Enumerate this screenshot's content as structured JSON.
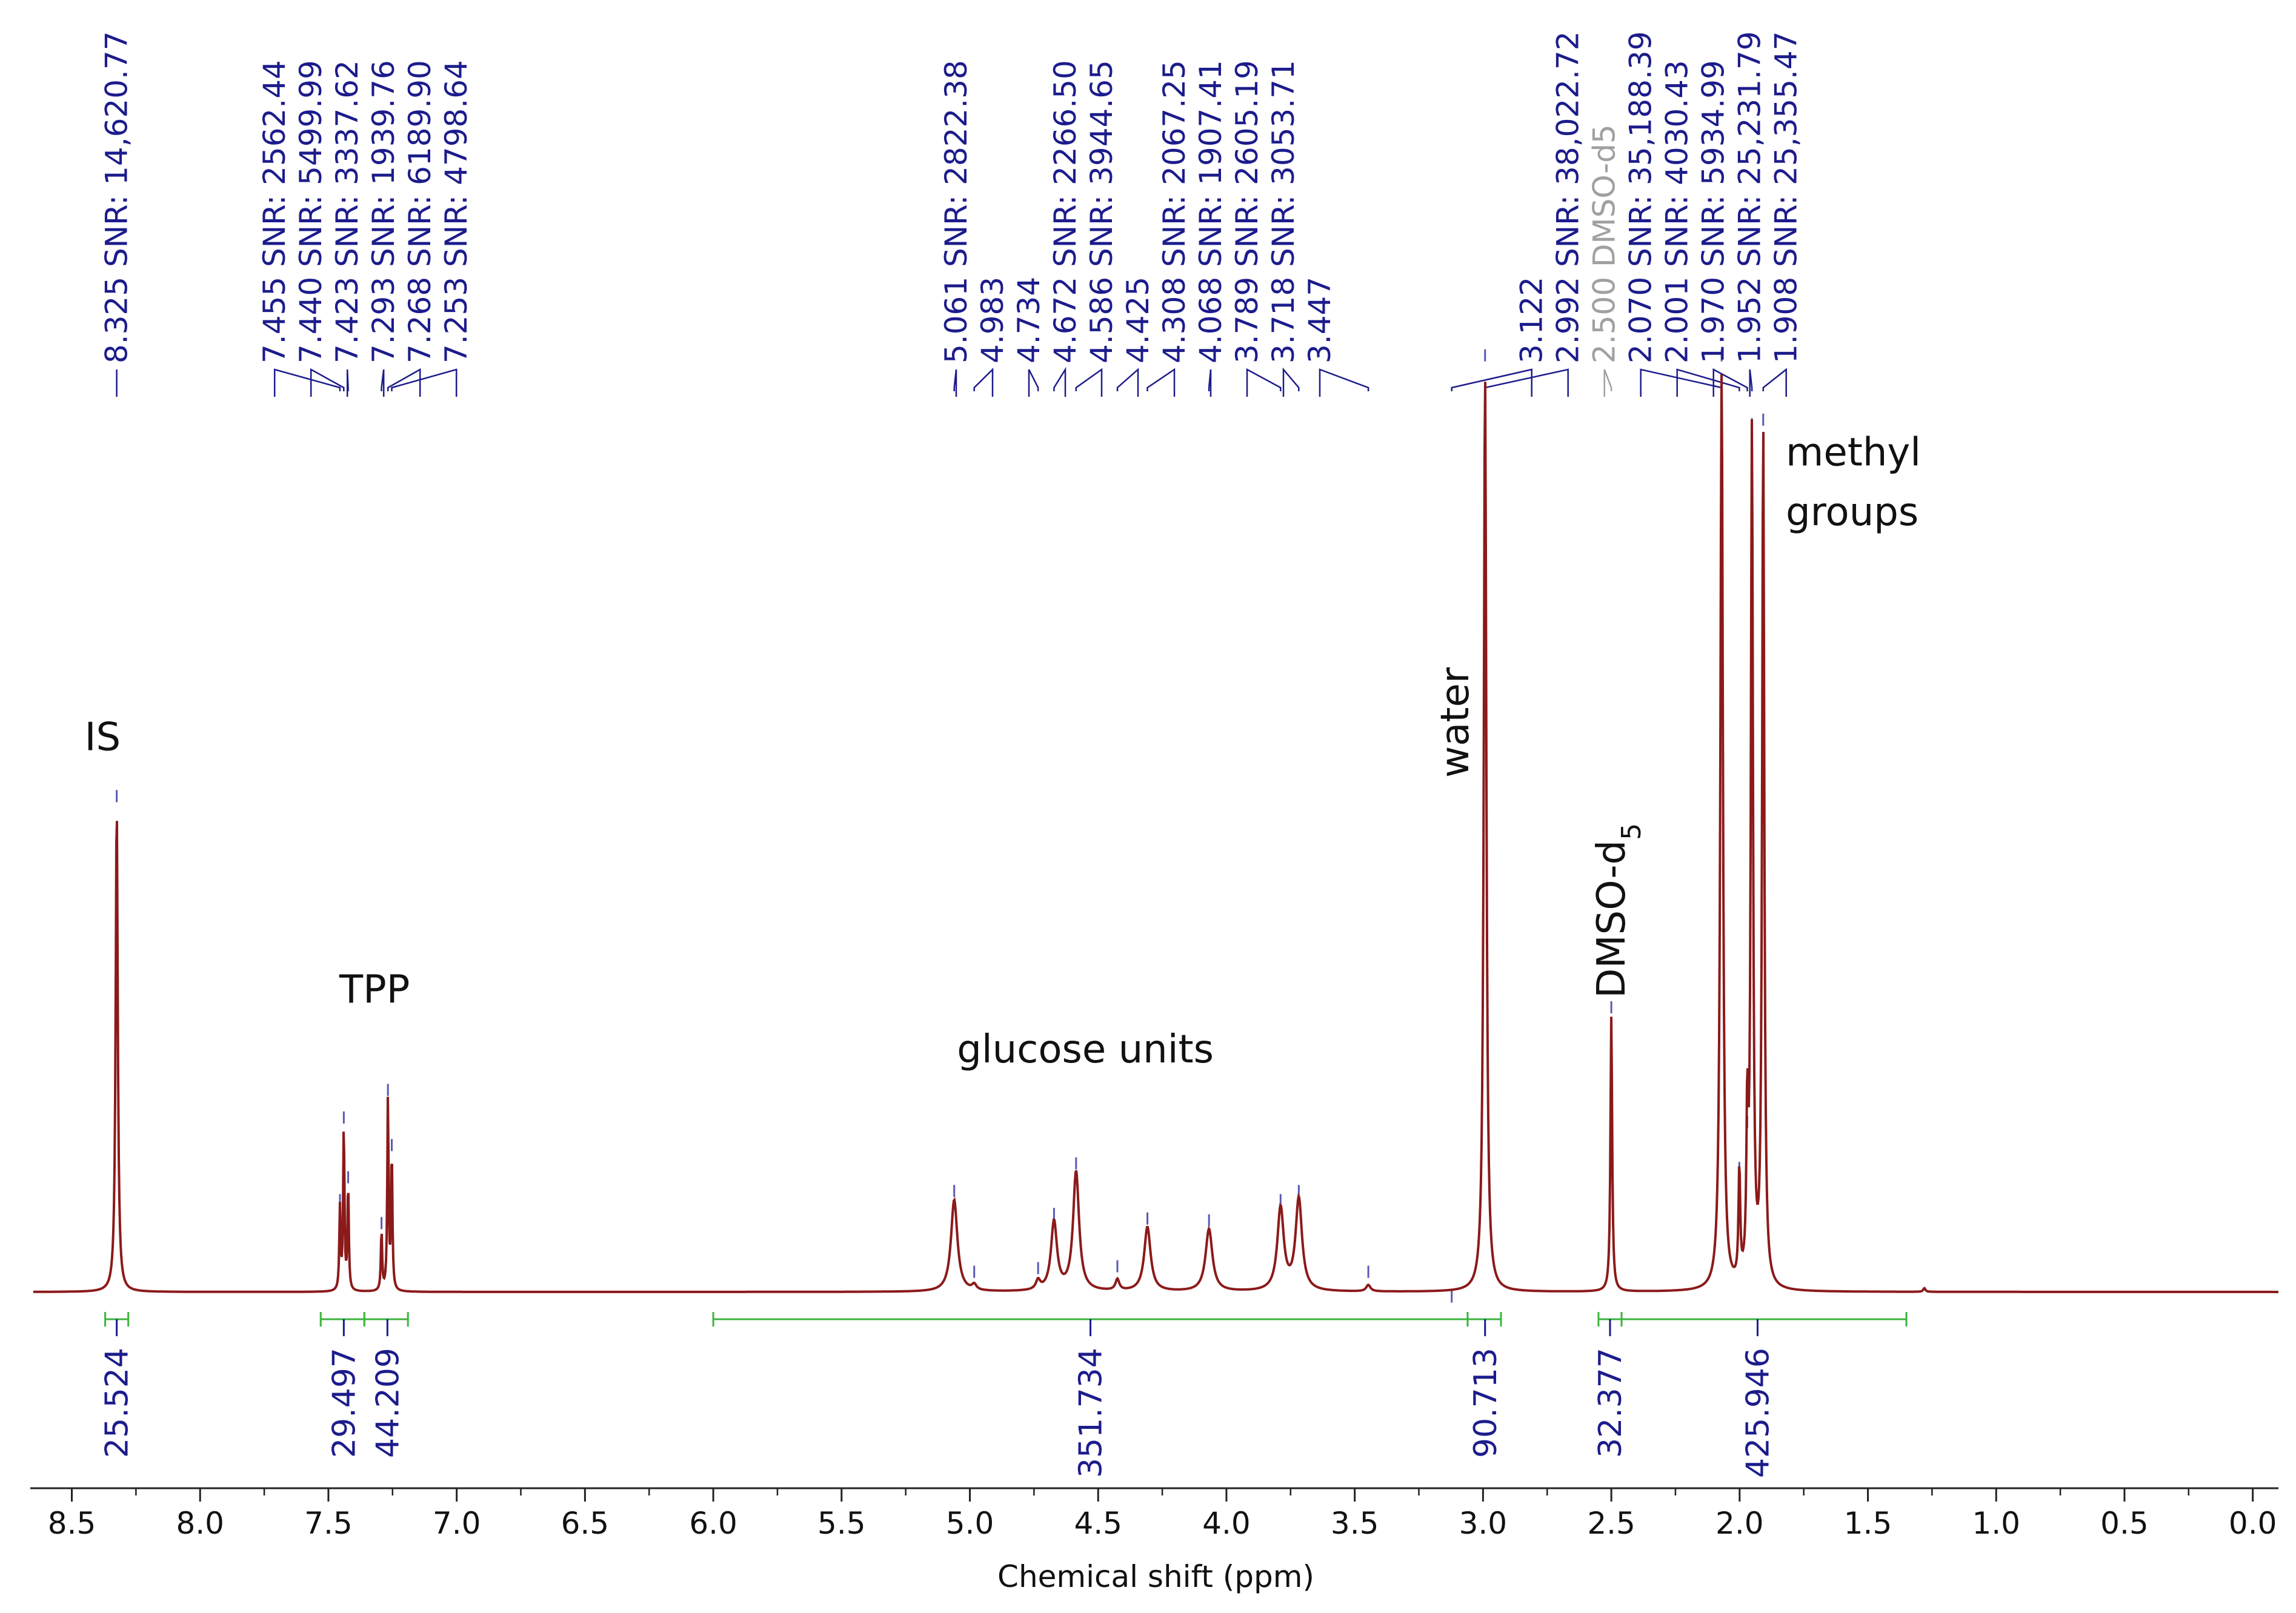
{
  "chart_data": {
    "type": "line",
    "xlabel": "Chemical shift (ppm)",
    "xlim": [
      8.65,
      -0.1
    ],
    "x_ticks": [
      "8.5",
      "8.0",
      "7.5",
      "7.0",
      "6.5",
      "6.0",
      "5.5",
      "5.0",
      "4.5",
      "4.0",
      "3.5",
      "3.0",
      "2.5",
      "2.0",
      "1.5",
      "1.0",
      "0.5",
      "0.0"
    ],
    "x_tick_values": [
      8.5,
      8.0,
      7.5,
      7.0,
      6.5,
      6.0,
      5.5,
      5.0,
      4.5,
      4.0,
      3.5,
      3.0,
      2.5,
      2.0,
      1.5,
      1.0,
      0.5,
      0.0
    ],
    "colors": {
      "spectrum": "#8b1a1a",
      "peak_label": "#1c1c8c",
      "solvent_label": "#a0a0a0",
      "integral": "#3cb43c",
      "integral_value": "#1c1c8c"
    },
    "spectrum_peaks": [
      {
        "ppm": 8.325,
        "height": 0.53,
        "width": 0.01
      },
      {
        "ppm": 7.455,
        "height": 0.09,
        "width": 0.006
      },
      {
        "ppm": 7.44,
        "height": 0.18,
        "width": 0.006
      },
      {
        "ppm": 7.423,
        "height": 0.115,
        "width": 0.006
      },
      {
        "ppm": 7.293,
        "height": 0.065,
        "width": 0.006
      },
      {
        "ppm": 7.268,
        "height": 0.21,
        "width": 0.006
      },
      {
        "ppm": 7.253,
        "height": 0.15,
        "width": 0.006
      },
      {
        "ppm": 5.061,
        "height": 0.1,
        "width": 0.03
      },
      {
        "ppm": 4.983,
        "height": 0.006,
        "width": 0.02
      },
      {
        "ppm": 4.734,
        "height": 0.01,
        "width": 0.02
      },
      {
        "ppm": 4.672,
        "height": 0.075,
        "width": 0.028
      },
      {
        "ppm": 4.586,
        "height": 0.13,
        "width": 0.028
      },
      {
        "ppm": 4.425,
        "height": 0.012,
        "width": 0.018
      },
      {
        "ppm": 4.308,
        "height": 0.07,
        "width": 0.03
      },
      {
        "ppm": 4.068,
        "height": 0.068,
        "width": 0.032
      },
      {
        "ppm": 3.789,
        "height": 0.09,
        "width": 0.03
      },
      {
        "ppm": 3.718,
        "height": 0.1,
        "width": 0.03
      },
      {
        "ppm": 3.447,
        "height": 0.007,
        "width": 0.02
      },
      {
        "ppm": 2.992,
        "height": 1.0,
        "width": 0.012
      },
      {
        "ppm": 2.5,
        "height": 0.3,
        "width": 0.008
      },
      {
        "ppm": 2.07,
        "height": 1.0,
        "width": 0.012
      },
      {
        "ppm": 2.001,
        "height": 0.12,
        "width": 0.008
      },
      {
        "ppm": 1.97,
        "height": 0.17,
        "width": 0.008
      },
      {
        "ppm": 1.952,
        "height": 0.93,
        "width": 0.01
      },
      {
        "ppm": 1.908,
        "height": 0.935,
        "width": 0.01
      },
      {
        "ppm": 1.28,
        "height": 0.004,
        "width": 0.01
      }
    ],
    "peak_labels": [
      {
        "ppm": 8.325,
        "text": "8.325 SNR: 14,620.77",
        "marker": 0.54
      },
      {
        "ppm": 7.455,
        "text": "7.455 SNR: 2562.44",
        "marker": 0.1
      },
      {
        "ppm": 7.44,
        "text": "7.440 SNR: 5499.99",
        "marker": 0.19
      },
      {
        "ppm": 7.423,
        "text": "7.423 SNR: 3337.62",
        "marker": 0.125
      },
      {
        "ppm": 7.293,
        "text": "7.293 SNR: 1939.76",
        "marker": 0.075
      },
      {
        "ppm": 7.268,
        "text": "7.268 SNR: 6189.90",
        "marker": 0.22
      },
      {
        "ppm": 7.253,
        "text": "7.253 SNR: 4798.64",
        "marker": 0.16
      },
      {
        "ppm": 5.061,
        "text": "5.061 SNR: 2822.38",
        "marker": 0.11
      },
      {
        "ppm": 4.983,
        "text": "4.983",
        "marker": 0.022
      },
      {
        "ppm": 4.734,
        "text": "4.734",
        "marker": 0.026
      },
      {
        "ppm": 4.672,
        "text": "4.672 SNR: 2266.50",
        "marker": 0.085
      },
      {
        "ppm": 4.586,
        "text": "4.586 SNR: 3944.65",
        "marker": 0.14
      },
      {
        "ppm": 4.425,
        "text": "4.425",
        "marker": 0.028
      },
      {
        "ppm": 4.308,
        "text": "4.308 SNR: 2067.25",
        "marker": 0.08
      },
      {
        "ppm": 4.068,
        "text": "4.068 SNR: 1907.41",
        "marker": 0.078
      },
      {
        "ppm": 3.789,
        "text": "3.789 SNR: 2605.19",
        "marker": 0.1
      },
      {
        "ppm": 3.718,
        "text": "3.718 SNR: 3053.71",
        "marker": 0.11
      },
      {
        "ppm": 3.447,
        "text": "3.447",
        "marker": 0.022
      },
      {
        "ppm": 3.122,
        "text": "3.122",
        "marker": -0.005
      },
      {
        "ppm": 2.992,
        "text": "2.992 SNR: 38,022.72",
        "marker": 1.02
      },
      {
        "ppm": 2.5,
        "text": "2.500 DMSO-d5",
        "marker": 0.31,
        "solvent": true
      },
      {
        "ppm": 2.07,
        "text": "2.070 SNR: 35,188.39",
        "marker": 1.02
      },
      {
        "ppm": 2.001,
        "text": "2.001 SNR: 4030.43",
        "marker": 0.135
      },
      {
        "ppm": 1.97,
        "text": "1.970 SNR: 5934.99",
        "marker": 0.185
      },
      {
        "ppm": 1.952,
        "text": "1.952 SNR: 25,231.79",
        "marker": 0.945
      },
      {
        "ppm": 1.908,
        "text": "1.908 SNR: 25,355.47",
        "marker": 0.95
      }
    ],
    "integrals": [
      {
        "from": 8.37,
        "to": 8.28,
        "value": "25.524",
        "label_ppm": 8.325
      },
      {
        "from": 7.53,
        "to": 7.36,
        "value": "29.497",
        "label_ppm": 7.44
      },
      {
        "from": 7.36,
        "to": 7.19,
        "value": "44.209",
        "label_ppm": 7.27
      },
      {
        "from": 6.0,
        "to": 3.06,
        "value": "351.734",
        "label_ppm": 4.53
      },
      {
        "from": 3.06,
        "to": 2.93,
        "value": "90.713",
        "label_ppm": 2.992
      },
      {
        "from": 2.55,
        "to": 2.46,
        "value": "32.377",
        "label_ppm": 2.505
      },
      {
        "from": 2.46,
        "to": 1.35,
        "value": "425.946",
        "label_ppm": 1.93
      }
    ],
    "annotations": [
      {
        "text": "IS",
        "ppm": 8.38,
        "level": 0.59,
        "anchor": "middle"
      },
      {
        "text": "TPP",
        "ppm": 7.32,
        "level": 0.315,
        "anchor": "middle"
      },
      {
        "text": "glucose units",
        "ppm": 4.55,
        "level": 0.25,
        "anchor": "middle"
      },
      {
        "text": "methyl",
        "ppm": 1.82,
        "level": 0.9,
        "anchor": "start"
      },
      {
        "text": "groups",
        "ppm": 1.82,
        "level": 0.835,
        "anchor": "start"
      }
    ],
    "vertical_annotations": [
      {
        "text": "water",
        "ppm": 3.11,
        "level": 0.56
      },
      {
        "text": "DMSO-d",
        "subscript": "5",
        "ppm": 2.5,
        "level": 0.32
      }
    ]
  }
}
